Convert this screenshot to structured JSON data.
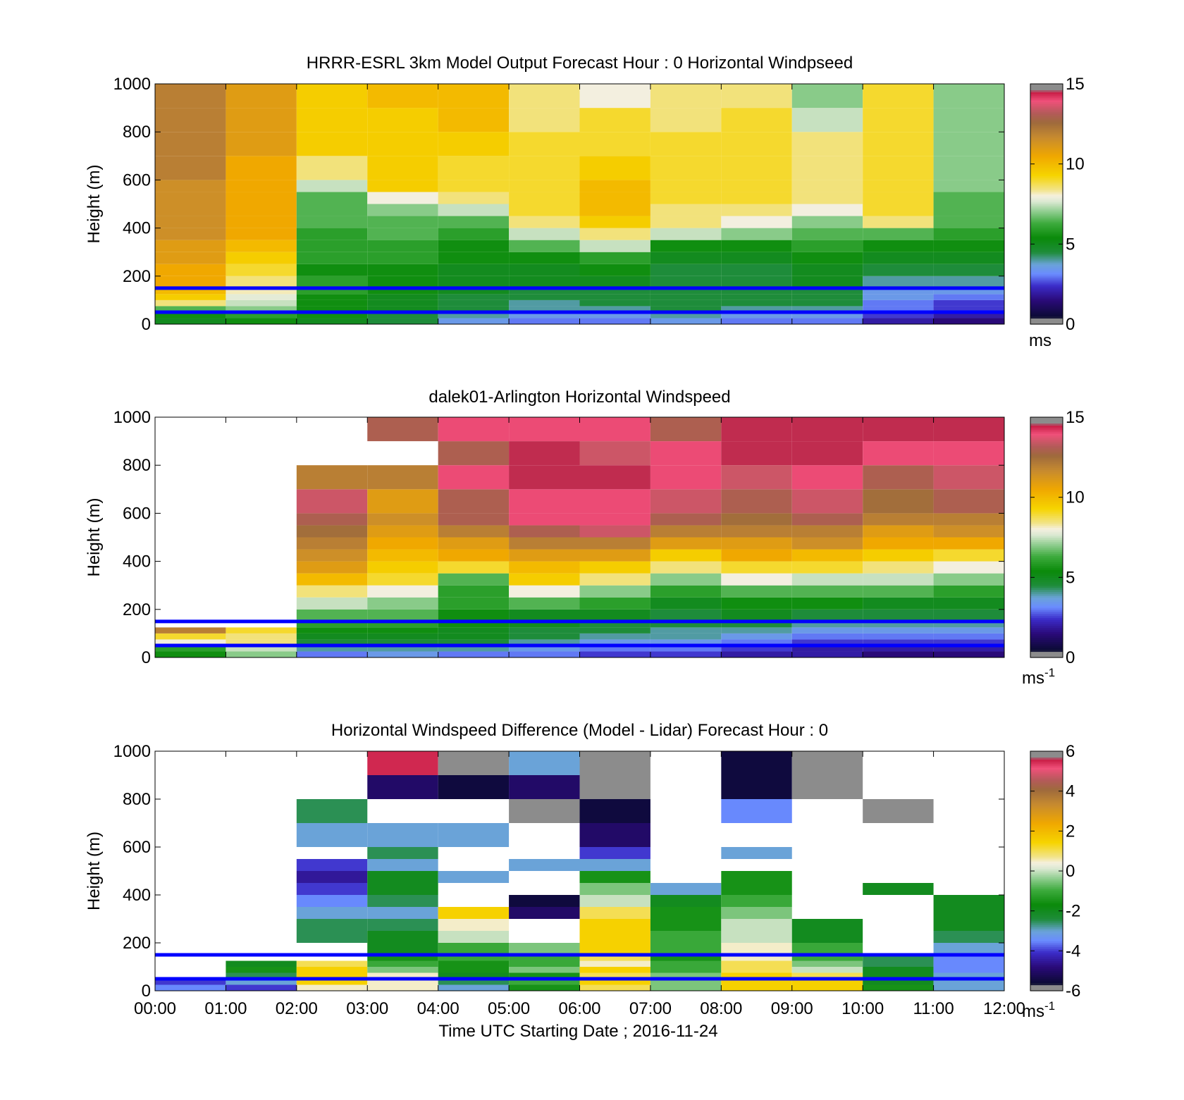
{
  "chart_data": [
    {
      "type": "heatmap",
      "title": "HRRR-ESRL 3km Model Output   Forecast Hour : 0 Horizontal Windpseed",
      "ylabel": "Height (m)",
      "xlabel": "",
      "ylim": [
        0,
        1000
      ],
      "xlim": [
        0,
        12
      ],
      "yticks": [
        "0",
        "200",
        "400",
        "600",
        "800",
        "1000"
      ],
      "colorbar": {
        "min": 0,
        "max": 15,
        "ticks": [
          "0",
          "5",
          "10",
          "15"
        ],
        "unit": "ms"
      },
      "reference_lines": [
        {
          "y": 150,
          "color": "#0000ff"
        },
        {
          "y": 50,
          "color": "#0000ff"
        }
      ],
      "x_hours": [
        0,
        1,
        2,
        3,
        4,
        5,
        6,
        7,
        8,
        9,
        10,
        11
      ],
      "y_levels": [
        0,
        25,
        50,
        75,
        100,
        125,
        150,
        200,
        250,
        300,
        350,
        400,
        450,
        500,
        550,
        600,
        700,
        800,
        900
      ],
      "values": [
        [
          5.0,
          5.5,
          6.5,
          8.5,
          9.5,
          10.0,
          10.5,
          10.5,
          11.0,
          11.0,
          11.5,
          11.5,
          11.5,
          11.5,
          11.5,
          12.0,
          12.0,
          12.0,
          12.0
        ],
        [
          5.5,
          6.0,
          7.0,
          7.5,
          7.8,
          8.2,
          8.5,
          9.0,
          9.5,
          10.0,
          10.5,
          10.5,
          10.5,
          10.5,
          10.5,
          10.5,
          11.0,
          11.0,
          11.0
        ],
        [
          5.0,
          5.5,
          5.5,
          5.5,
          5.5,
          6.0,
          6.0,
          5.5,
          6.0,
          6.0,
          6.0,
          6.5,
          6.5,
          6.5,
          7.5,
          8.5,
          9.5,
          9.5,
          9.5
        ],
        [
          4.5,
          4.5,
          5.0,
          5.0,
          5.0,
          5.5,
          5.5,
          5.5,
          6.0,
          6.0,
          6.5,
          6.5,
          7.0,
          8.0,
          9.5,
          9.5,
          9.5,
          9.5,
          10.0
        ],
        [
          3.5,
          4.0,
          4.5,
          4.5,
          4.5,
          5.0,
          5.0,
          5.0,
          5.5,
          5.5,
          6.0,
          6.5,
          7.5,
          8.5,
          9.0,
          9.0,
          9.5,
          10.0,
          10.0
        ],
        [
          3.0,
          3.5,
          4.0,
          4.0,
          4.5,
          4.5,
          5.0,
          5.0,
          5.5,
          6.5,
          7.5,
          8.5,
          9.0,
          9.0,
          9.0,
          9.0,
          9.0,
          8.5,
          8.5
        ],
        [
          3.0,
          3.5,
          4.0,
          4.5,
          4.5,
          4.5,
          5.0,
          5.5,
          6.0,
          7.5,
          8.5,
          9.5,
          10.0,
          10.0,
          10.0,
          9.5,
          9.0,
          9.0,
          8.0
        ],
        [
          3.5,
          4.0,
          4.5,
          4.5,
          4.5,
          4.5,
          4.5,
          4.5,
          5.0,
          5.5,
          7.5,
          8.5,
          8.5,
          9.0,
          9.0,
          9.0,
          9.0,
          8.5,
          8.5
        ],
        [
          3.0,
          3.5,
          4.0,
          4.5,
          4.5,
          4.5,
          4.5,
          4.5,
          5.0,
          5.5,
          7.0,
          8.0,
          8.5,
          9.0,
          9.0,
          9.0,
          9.0,
          9.0,
          8.5
        ],
        [
          3.0,
          3.5,
          4.0,
          4.5,
          4.5,
          4.5,
          5.0,
          5.0,
          5.5,
          6.0,
          6.5,
          7.0,
          8.0,
          8.5,
          8.5,
          8.5,
          8.5,
          7.5,
          7.0
        ],
        [
          2.0,
          2.5,
          3.0,
          3.0,
          3.5,
          3.5,
          4.0,
          4.5,
          5.0,
          5.5,
          6.5,
          8.5,
          9.0,
          9.0,
          9.0,
          9.0,
          9.0,
          9.0,
          9.0
        ],
        [
          1.5,
          2.0,
          2.5,
          2.5,
          3.0,
          3.5,
          4.0,
          4.5,
          5.0,
          5.5,
          6.0,
          6.5,
          6.5,
          6.5,
          7.0,
          7.0,
          7.0,
          7.0,
          7.0
        ]
      ]
    },
    {
      "type": "heatmap",
      "title": "dalek01-Arlington  Horizontal Windspeed",
      "ylabel": "Height (m)",
      "xlabel": "",
      "ylim": [
        0,
        1000
      ],
      "xlim": [
        0,
        12
      ],
      "yticks": [
        "0",
        "200",
        "400",
        "600",
        "800",
        "1000"
      ],
      "colorbar": {
        "min": 0,
        "max": 15,
        "ticks": [
          "0",
          "5",
          "10",
          "15"
        ],
        "unit": "ms",
        "unit_exp": "-1"
      },
      "reference_lines": [
        {
          "y": 150,
          "color": "#0000ff"
        },
        {
          "y": 50,
          "color": "#0000ff"
        }
      ],
      "x_hours": [
        0,
        1,
        2,
        3,
        4,
        5,
        6,
        7,
        8,
        9,
        10,
        11
      ],
      "y_levels": [
        0,
        25,
        50,
        75,
        100,
        125,
        150,
        200,
        250,
        300,
        350,
        400,
        450,
        500,
        550,
        600,
        700,
        800,
        900
      ],
      "values": [
        [
          5.5,
          6.0,
          8.0,
          9.0,
          12.0,
          null,
          null,
          null,
          null,
          null,
          null,
          null,
          null,
          null,
          null,
          null,
          null,
          null,
          null
        ],
        [
          7.0,
          7.5,
          8.5,
          8.5,
          9.0,
          null,
          null,
          null,
          null,
          null,
          null,
          null,
          null,
          null,
          null,
          null,
          null,
          null,
          null
        ],
        [
          3.0,
          4.0,
          4.5,
          5.0,
          5.5,
          6.0,
          6.5,
          7.5,
          8.5,
          10.0,
          11.0,
          11.5,
          12.0,
          12.5,
          13.0,
          13.5,
          12.0,
          null,
          null
        ],
        [
          3.5,
          4.0,
          4.5,
          5.0,
          5.5,
          6.0,
          6.5,
          7.0,
          8.0,
          9.0,
          9.5,
          10.0,
          10.5,
          11.0,
          11.5,
          11.0,
          12.0,
          null,
          13.0
        ],
        [
          3.0,
          4.0,
          4.5,
          5.0,
          5.0,
          5.5,
          5.5,
          6.0,
          6.0,
          6.5,
          9.0,
          10.5,
          11.0,
          12.0,
          13.0,
          13.0,
          14.0,
          13.0,
          14.0
        ],
        [
          3.0,
          3.5,
          4.0,
          4.5,
          4.5,
          5.0,
          5.0,
          6.5,
          8.0,
          9.5,
          10.0,
          11.0,
          12.0,
          13.0,
          14.0,
          14.0,
          14.5,
          14.5,
          14.0
        ],
        [
          2.5,
          3.0,
          3.5,
          4.0,
          4.5,
          4.5,
          5.0,
          6.0,
          7.0,
          8.5,
          9.5,
          11.0,
          12.0,
          13.5,
          14.0,
          14.0,
          14.5,
          13.5,
          14.0
        ],
        [
          2.5,
          3.0,
          3.5,
          4.0,
          4.0,
          4.5,
          4.5,
          5.0,
          6.0,
          7.0,
          8.5,
          9.5,
          11.0,
          12.0,
          13.0,
          13.5,
          14.0,
          14.0,
          13.0
        ],
        [
          2.0,
          2.5,
          3.0,
          3.5,
          4.0,
          4.5,
          5.0,
          5.5,
          6.5,
          8.0,
          9.0,
          10.5,
          11.0,
          12.0,
          12.5,
          13.0,
          13.5,
          14.5,
          14.5
        ],
        [
          2.0,
          2.0,
          2.5,
          3.0,
          3.5,
          4.0,
          4.5,
          5.5,
          6.5,
          7.5,
          9.0,
          10.0,
          11.5,
          12.0,
          13.0,
          13.5,
          14.0,
          14.5,
          14.5
        ],
        [
          1.5,
          2.0,
          2.5,
          3.0,
          3.5,
          4.0,
          4.5,
          5.0,
          6.5,
          7.5,
          8.5,
          9.5,
          10.5,
          11.0,
          12.0,
          12.5,
          13.0,
          14.0,
          14.5
        ],
        [
          1.5,
          2.0,
          2.5,
          3.0,
          3.5,
          4.0,
          4.5,
          5.0,
          6.0,
          7.0,
          8.0,
          9.0,
          10.5,
          11.5,
          12.0,
          13.0,
          13.5,
          14.0,
          14.5
        ]
      ]
    },
    {
      "type": "heatmap",
      "title": "Horizontal Windspeed Difference (Model - Lidar) Forecast Hour : 0",
      "ylabel": "Height (m)",
      "xlabel": "Time UTC  Starting Date ; 2016-11-24",
      "ylim": [
        0,
        1000
      ],
      "xlim": [
        0,
        12
      ],
      "yticks": [
        "0",
        "200",
        "400",
        "600",
        "800",
        "1000"
      ],
      "xticks": [
        "00:00",
        "01:00",
        "02:00",
        "03:00",
        "04:00",
        "05:00",
        "06:00",
        "07:00",
        "08:00",
        "09:00",
        "10:00",
        "11:00",
        "12:00"
      ],
      "colorbar": {
        "min": -6,
        "max": 6,
        "ticks": [
          "-6",
          "-4",
          "-2",
          "0",
          "2",
          "4",
          "6"
        ],
        "unit": "ms",
        "unit_exp": "-1"
      },
      "reference_lines": [
        {
          "y": 150,
          "color": "#0000ff"
        },
        {
          "y": 50,
          "color": "#0000ff"
        }
      ],
      "x_hours": [
        0,
        1,
        2,
        3,
        4,
        5,
        6,
        7,
        8,
        9,
        10,
        11
      ],
      "y_levels": [
        0,
        25,
        50,
        75,
        100,
        125,
        150,
        200,
        250,
        300,
        350,
        400,
        450,
        500,
        550,
        600,
        700,
        800,
        900
      ],
      "values": [
        [
          -3.5,
          -4.0,
          null,
          null,
          null,
          null,
          null,
          null,
          null,
          null,
          null,
          null,
          null,
          null,
          null,
          null,
          null,
          null,
          null
        ],
        [
          -4.0,
          -3.0,
          -2.5,
          -1.5,
          -2.0,
          null,
          null,
          null,
          null,
          null,
          null,
          null,
          null,
          null,
          null,
          null,
          null,
          null,
          null
        ],
        [
          0.5,
          1.5,
          1.5,
          1.5,
          1.0,
          null,
          null,
          -2.5,
          -2.5,
          -3.0,
          -3.5,
          -4.0,
          -4.5,
          -4.0,
          null,
          -3.0,
          -2.5,
          null,
          null
        ],
        [
          0.5,
          0.5,
          0.5,
          -0.5,
          -1.0,
          -1.5,
          -2.0,
          -2.0,
          -2.5,
          -3.0,
          -2.5,
          -2.0,
          -2.0,
          -3.0,
          -2.5,
          -3.0,
          null,
          -5.0,
          5.5
        ],
        [
          -3.0,
          -2.5,
          -2.0,
          -1.5,
          -1.5,
          -1.0,
          -1.0,
          0.0,
          0.5,
          1.5,
          null,
          null,
          -3.0,
          null,
          null,
          -3.0,
          null,
          -5.5,
          -6.0
        ],
        [
          -1.5,
          -1.0,
          -1.5,
          -0.5,
          -1.0,
          -1.0,
          -0.5,
          null,
          null,
          -5.0,
          -5.5,
          null,
          null,
          -3.0,
          null,
          null,
          -6.0,
          -5.0,
          -3.0
        ],
        [
          1.0,
          1.5,
          1.0,
          1.5,
          0.5,
          1.0,
          1.5,
          1.5,
          1.5,
          1.0,
          0.0,
          -0.5,
          -1.5,
          -3.0,
          -4.0,
          -5.0,
          -5.5,
          6.5,
          6.5
        ],
        [
          -0.5,
          -0.5,
          -0.5,
          -1.0,
          -1.0,
          -1.5,
          -1.0,
          -1.0,
          -1.5,
          -1.5,
          -2.0,
          -3.0,
          null,
          null,
          null,
          null,
          null,
          null,
          null
        ],
        [
          1.5,
          1.5,
          1.5,
          1.0,
          1.0,
          0.5,
          0.5,
          0.0,
          0.0,
          -0.5,
          -1.0,
          -1.5,
          -1.5,
          null,
          -3.0,
          null,
          -3.5,
          -5.5,
          -5.5
        ],
        [
          1.5,
          1.5,
          1.0,
          0.0,
          -0.5,
          -1.0,
          -1.0,
          -2.0,
          -2.0,
          null,
          null,
          null,
          null,
          null,
          null,
          null,
          null,
          -6.0,
          6.5
        ],
        [
          -1.5,
          -2.0,
          -2.0,
          -2.0,
          -2.5,
          -2.5,
          null,
          null,
          null,
          null,
          null,
          -2.0,
          null,
          null,
          null,
          null,
          -6.0,
          null,
          null
        ],
        [
          -3.0,
          -3.0,
          -3.0,
          -3.5,
          -3.5,
          -3.5,
          -3.0,
          -2.5,
          -2.0,
          -2.0,
          -2.0,
          null,
          null,
          null,
          null,
          null,
          null,
          null,
          null
        ]
      ]
    }
  ]
}
